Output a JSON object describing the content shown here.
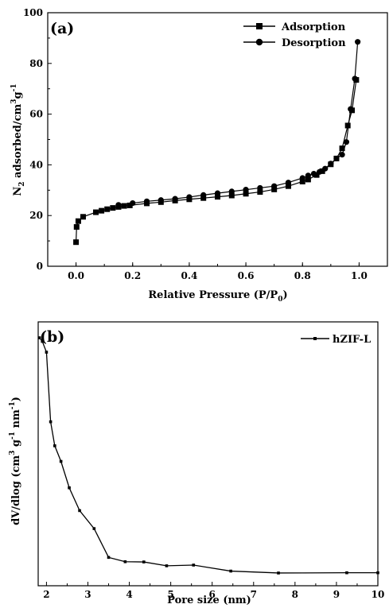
{
  "chart_data": [
    {
      "type": "line",
      "panel_label": "(a)",
      "xlabel_main": "Relative Pressure (P/P",
      "xlabel_sub": "0",
      "xlabel_end": ")",
      "ylabel_n": "N",
      "ylabel_n_sub": "2",
      "ylabel_mid": " adsorbed/cm",
      "ylabel_sup3": "3",
      "ylabel_g": "g",
      "ylabel_sup_end": "-1",
      "xlim": [
        -0.1,
        1.1
      ],
      "ylim": [
        0,
        100
      ],
      "x_ticks": [
        "0.0",
        "0.2",
        "0.4",
        "0.6",
        "0.8",
        "1.0"
      ],
      "x_tick_values": [
        0.0,
        0.2,
        0.4,
        0.6,
        0.8,
        1.0
      ],
      "y_ticks": [
        "0",
        "20",
        "40",
        "60",
        "80",
        "100"
      ],
      "y_tick_values": [
        0,
        20,
        40,
        60,
        80,
        100
      ],
      "legend_position": "top-right",
      "series": [
        {
          "name": "Adsorption",
          "marker": "square",
          "x": [
            0.0,
            0.002,
            0.008,
            0.025,
            0.07,
            0.09,
            0.11,
            0.13,
            0.15,
            0.17,
            0.19,
            0.25,
            0.3,
            0.35,
            0.4,
            0.45,
            0.5,
            0.55,
            0.6,
            0.65,
            0.7,
            0.75,
            0.8,
            0.82,
            0.85,
            0.87,
            0.9,
            0.92,
            0.94,
            0.96,
            0.975,
            0.99
          ],
          "y": [
            9.5,
            15.5,
            17.8,
            19.5,
            21.3,
            21.9,
            22.5,
            23.0,
            23.4,
            23.8,
            24.0,
            24.8,
            25.3,
            25.9,
            26.4,
            26.9,
            27.4,
            27.9,
            28.6,
            29.3,
            30.3,
            31.6,
            33.4,
            34.2,
            36.0,
            37.5,
            40.2,
            42.5,
            46.5,
            55.5,
            61.5,
            73.5
          ]
        },
        {
          "name": "Desorption",
          "marker": "circle",
          "x": [
            0.995,
            0.985,
            0.97,
            0.955,
            0.94,
            0.92,
            0.9,
            0.88,
            0.86,
            0.84,
            0.82,
            0.8,
            0.75,
            0.7,
            0.65,
            0.6,
            0.55,
            0.5,
            0.45,
            0.4,
            0.35,
            0.3,
            0.25,
            0.2,
            0.15
          ],
          "y": [
            88.5,
            74.0,
            62.0,
            49.0,
            44.0,
            42.5,
            40.5,
            38.5,
            37.2,
            36.5,
            35.8,
            34.8,
            33.0,
            31.6,
            30.9,
            30.2,
            29.5,
            28.8,
            28.1,
            27.3,
            26.6,
            26.1,
            25.6,
            24.9,
            24.2
          ]
        }
      ]
    },
    {
      "type": "line",
      "panel_label": "(b)",
      "xlabel": "Pore size (nm)",
      "ylabel_main": "dV/dlog (cm",
      "ylabel_sup3": "3",
      "ylabel_g": " g",
      "ylabel_sup_g": "-1",
      "ylabel_nm": " nm",
      "ylabel_sup_nm": "-1",
      "ylabel_end": ")",
      "xlim": [
        1.8,
        10
      ],
      "ylim": [
        0,
        1
      ],
      "x_ticks": [
        "2",
        "3",
        "4",
        "5",
        "6",
        "7",
        "8",
        "9",
        "10"
      ],
      "x_tick_values": [
        2,
        3,
        4,
        5,
        6,
        7,
        8,
        9,
        10
      ],
      "legend_position": "top-right",
      "series": [
        {
          "name": "hZIF-L",
          "marker": "small-square",
          "x": [
            1.83,
            1.9,
            2.0,
            2.1,
            2.2,
            2.35,
            2.55,
            2.8,
            3.15,
            3.5,
            3.9,
            4.35,
            4.9,
            5.55,
            6.45,
            7.6,
            9.25,
            10.0
          ],
          "y": [
            1.0,
            0.985,
            0.94,
            0.65,
            0.55,
            0.485,
            0.375,
            0.28,
            0.205,
            0.085,
            0.067,
            0.066,
            0.05,
            0.053,
            0.028,
            0.02,
            0.021,
            0.021
          ]
        }
      ]
    }
  ]
}
